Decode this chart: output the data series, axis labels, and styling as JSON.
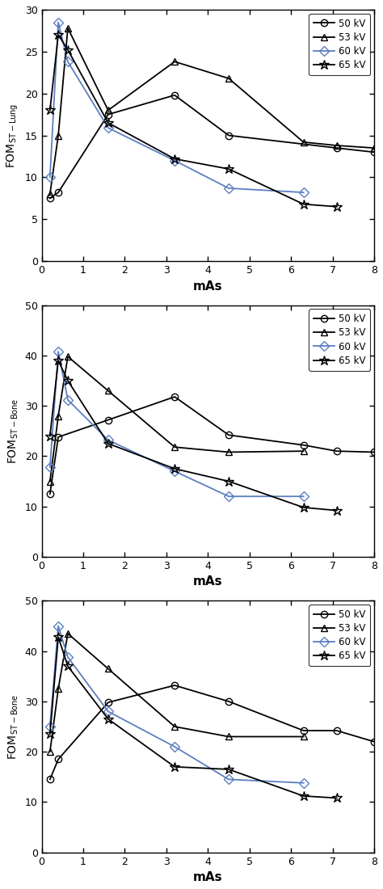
{
  "x_values": [
    0.2,
    0.4,
    0.63,
    1.6,
    3.2,
    4.5,
    6.3,
    7.1,
    8.0
  ],
  "panel1": {
    "ylabel": "FOM$_{\\rm ST-Lung}$",
    "ylim": [
      0,
      30
    ],
    "yticks": [
      0,
      5,
      10,
      15,
      20,
      25,
      30
    ],
    "series": {
      "50kV": [
        7.5,
        8.2,
        null,
        17.5,
        19.8,
        15.0,
        null,
        13.5,
        13.0
      ],
      "53kV": [
        8.0,
        15.0,
        27.8,
        18.0,
        23.8,
        21.8,
        14.2,
        13.8,
        13.5
      ],
      "60kV": [
        10.0,
        28.5,
        23.8,
        15.9,
        12.0,
        8.7,
        8.2,
        null,
        null
      ],
      "65kV": [
        18.0,
        27.0,
        25.2,
        16.5,
        12.2,
        11.0,
        6.8,
        6.5,
        null
      ]
    }
  },
  "panel2": {
    "ylabel": "FOM$_{\\rm ST-Bone}$",
    "ylim": [
      0,
      50
    ],
    "yticks": [
      0,
      10,
      20,
      30,
      40,
      50
    ],
    "series": {
      "50kV": [
        12.5,
        23.8,
        null,
        27.2,
        31.8,
        24.2,
        22.2,
        21.0,
        20.8
      ],
      "53kV": [
        15.0,
        28.0,
        39.8,
        33.0,
        21.8,
        20.8,
        21.0,
        null,
        null
      ],
      "60kV": [
        17.8,
        40.8,
        31.2,
        23.2,
        17.0,
        12.0,
        12.0,
        null,
        null
      ],
      "65kV": [
        24.0,
        39.0,
        35.0,
        22.5,
        17.5,
        15.0,
        9.8,
        9.2,
        null
      ]
    }
  },
  "panel3": {
    "ylabel": "FOM$_{\\rm ST-Bone}$",
    "ylim": [
      0,
      50
    ],
    "yticks": [
      0,
      10,
      20,
      30,
      40,
      50
    ],
    "series": {
      "50kV": [
        14.5,
        18.5,
        null,
        29.8,
        33.2,
        30.0,
        24.2,
        24.2,
        22.0
      ],
      "53kV": [
        20.0,
        32.5,
        43.5,
        36.5,
        25.0,
        23.0,
        23.0,
        null,
        null
      ],
      "60kV": [
        25.0,
        45.0,
        38.8,
        28.0,
        21.0,
        14.5,
        13.8,
        null,
        null
      ],
      "65kV": [
        23.5,
        42.8,
        37.0,
        26.5,
        17.0,
        16.5,
        11.2,
        10.8,
        null
      ]
    }
  },
  "series_styles": {
    "50kV": {
      "color": "#000000",
      "marker": "o",
      "label": "50 kV",
      "filled": false
    },
    "53kV": {
      "color": "#000000",
      "marker": "^",
      "label": "53 kV",
      "filled": false
    },
    "60kV": {
      "color": "#5B7FBF",
      "marker": "D",
      "label": "60 kV",
      "filled": false
    },
    "65kV": {
      "color": "#000000",
      "marker": "*",
      "label": "65 kV",
      "filled": false
    }
  },
  "xlabel": "mAs",
  "xlim": [
    0,
    8
  ],
  "xticks": [
    0,
    1,
    2,
    3,
    4,
    5,
    6,
    7,
    8
  ],
  "background_color": "#ffffff",
  "linewidth": 1.3,
  "markersize": 6,
  "markersize_star": 9
}
